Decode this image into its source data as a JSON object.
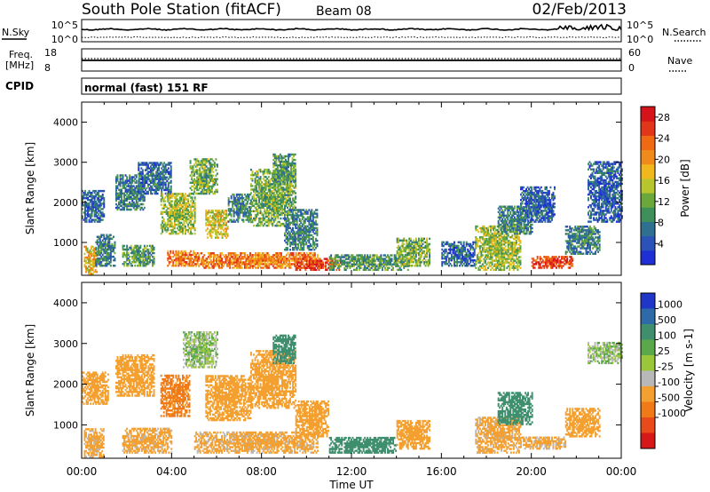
{
  "header": {
    "station": "South Pole Station (fitACF)",
    "beam": "Beam 08",
    "date": "02/Feb/2013"
  },
  "noise_panel": {
    "left_label": "N.Sky",
    "right_label": "N.Search",
    "left_ticks": [
      "10^5",
      "10^0"
    ],
    "right_ticks": [
      "10^5",
      "10^0"
    ]
  },
  "freq_panel": {
    "left_label_line1": "Freq.",
    "left_label_line2": "[MHz]",
    "left_ticks": [
      "18",
      "8"
    ],
    "right_label": "Nave",
    "right_ticks": [
      "60",
      "0"
    ]
  },
  "cpid_panel": {
    "label": "CPID",
    "mode_text": "normal (fast) 151 RF"
  },
  "colors": {
    "power_scale": [
      "#1f2fd6",
      "#2a52b8",
      "#2f6f8f",
      "#3f8f5a",
      "#6aa83c",
      "#b6c62c",
      "#f0b81c",
      "#f08a1a",
      "#f06a14",
      "#e2361a",
      "#d4141a"
    ],
    "velocity_scale": [
      "#1f36c8",
      "#2f6aa8",
      "#3f8f6f",
      "#5aa84a",
      "#9ac63a",
      "#b8b8b8",
      "#f4a030",
      "#f07a18",
      "#e84a1a",
      "#d61818"
    ]
  },
  "chart_data": [
    {
      "type": "heatmap",
      "title": "",
      "xlabel": "",
      "ylabel": "Slant Range [km]",
      "xlim": [
        "00:00",
        "00:00"
      ],
      "ylim": [
        180,
        4500
      ],
      "yticks": [
        "1000",
        "2000",
        "3000",
        "4000"
      ],
      "colorbar_label": "Power [dB]",
      "colorbar_ticks": [
        "4",
        "8",
        "12",
        "16",
        "20",
        "24",
        "28"
      ],
      "colorbar_range": [
        0,
        30
      ],
      "blobs": [
        {
          "t0": 0.0,
          "t1": 1.0,
          "r0": 1500,
          "r1": 2300,
          "v": 6
        },
        {
          "t0": 0.1,
          "t1": 0.7,
          "r0": 200,
          "r1": 900,
          "v": 18
        },
        {
          "t0": 0.6,
          "t1": 1.5,
          "r0": 400,
          "r1": 1200,
          "v": 8
        },
        {
          "t0": 1.5,
          "t1": 2.8,
          "r0": 1800,
          "r1": 2700,
          "v": 7
        },
        {
          "t0": 1.8,
          "t1": 3.2,
          "r0": 400,
          "r1": 900,
          "v": 10
        },
        {
          "t0": 2.5,
          "t1": 4.0,
          "r0": 2200,
          "r1": 3000,
          "v": 6
        },
        {
          "t0": 3.5,
          "t1": 5.0,
          "r0": 1200,
          "r1": 2200,
          "v": 14
        },
        {
          "t0": 3.8,
          "t1": 5.0,
          "r0": 400,
          "r1": 800,
          "v": 22
        },
        {
          "t0": 4.8,
          "t1": 6.0,
          "r0": 2200,
          "r1": 3100,
          "v": 12
        },
        {
          "t0": 5.0,
          "t1": 10.5,
          "r0": 350,
          "r1": 750,
          "v": 22
        },
        {
          "t0": 5.5,
          "t1": 6.5,
          "r0": 1100,
          "r1": 1800,
          "v": 16
        },
        {
          "t0": 6.5,
          "t1": 7.5,
          "r0": 1500,
          "r1": 2200,
          "v": 8
        },
        {
          "t0": 7.5,
          "t1": 9.5,
          "r0": 1400,
          "r1": 2800,
          "v": 12
        },
        {
          "t0": 8.5,
          "t1": 9.5,
          "r0": 2500,
          "r1": 3200,
          "v": 10
        },
        {
          "t0": 9.0,
          "t1": 10.5,
          "r0": 800,
          "r1": 1800,
          "v": 8
        },
        {
          "t0": 9.5,
          "t1": 11.5,
          "r0": 300,
          "r1": 600,
          "v": 26
        },
        {
          "t0": 11.0,
          "t1": 14.5,
          "r0": 300,
          "r1": 700,
          "v": 10
        },
        {
          "t0": 14.0,
          "t1": 15.5,
          "r0": 400,
          "r1": 1100,
          "v": 12
        },
        {
          "t0": 16.0,
          "t1": 17.5,
          "r0": 400,
          "r1": 1000,
          "v": 6
        },
        {
          "t0": 17.5,
          "t1": 19.5,
          "r0": 300,
          "r1": 1400,
          "v": 14
        },
        {
          "t0": 18.5,
          "t1": 20.0,
          "r0": 1200,
          "r1": 1900,
          "v": 8
        },
        {
          "t0": 20.0,
          "t1": 21.8,
          "r0": 350,
          "r1": 650,
          "v": 26
        },
        {
          "t0": 19.5,
          "t1": 21.0,
          "r0": 1500,
          "r1": 2400,
          "v": 5
        },
        {
          "t0": 21.5,
          "t1": 23.0,
          "r0": 700,
          "r1": 1400,
          "v": 8
        },
        {
          "t0": 22.5,
          "t1": 24.0,
          "r0": 1500,
          "r1": 3000,
          "v": 5
        }
      ]
    },
    {
      "type": "heatmap",
      "title": "",
      "xlabel": "Time UT",
      "ylabel": "Slant Range [km]",
      "xticks": [
        "00:00",
        "04:00",
        "08:00",
        "12:00",
        "16:00",
        "20:00",
        "00:00"
      ],
      "xlim": [
        "00:00",
        "00:00"
      ],
      "ylim": [
        180,
        4500
      ],
      "yticks": [
        "1000",
        "2000",
        "3000",
        "4000"
      ],
      "colorbar_label": "Velocity [m s-1]",
      "colorbar_ticks": [
        "1000",
        "500",
        "100",
        "25",
        "-25",
        "-100",
        "-500",
        "-1000"
      ],
      "blobs": [
        {
          "t0": 0.0,
          "t1": 1.2,
          "r0": 1500,
          "r1": 2300,
          "v": -300
        },
        {
          "t0": 0.1,
          "t1": 1.0,
          "r0": 200,
          "r1": 900,
          "v": -150
        },
        {
          "t0": 1.5,
          "t1": 3.2,
          "r0": 1700,
          "r1": 2700,
          "v": -300
        },
        {
          "t0": 1.8,
          "t1": 4.0,
          "r0": 300,
          "r1": 900,
          "v": -150
        },
        {
          "t0": 3.5,
          "t1": 4.8,
          "r0": 1200,
          "r1": 2200,
          "v": -700
        },
        {
          "t0": 4.5,
          "t1": 6.0,
          "r0": 2400,
          "r1": 3300,
          "v": 0
        },
        {
          "t0": 5.0,
          "t1": 10.5,
          "r0": 300,
          "r1": 800,
          "v": -150
        },
        {
          "t0": 5.5,
          "t1": 7.5,
          "r0": 1100,
          "r1": 2200,
          "v": -300
        },
        {
          "t0": 7.5,
          "t1": 9.5,
          "r0": 1400,
          "r1": 2800,
          "v": -300
        },
        {
          "t0": 8.5,
          "t1": 9.5,
          "r0": 2500,
          "r1": 3200,
          "v": 200
        },
        {
          "t0": 9.5,
          "t1": 11.0,
          "r0": 700,
          "r1": 1600,
          "v": -300
        },
        {
          "t0": 11.0,
          "t1": 14.0,
          "r0": 300,
          "r1": 700,
          "v": 200
        },
        {
          "t0": 14.0,
          "t1": 15.5,
          "r0": 400,
          "r1": 1100,
          "v": -300
        },
        {
          "t0": 17.5,
          "t1": 19.5,
          "r0": 300,
          "r1": 1200,
          "v": -150
        },
        {
          "t0": 18.5,
          "t1": 20.0,
          "r0": 1000,
          "r1": 1800,
          "v": 200
        },
        {
          "t0": 19.5,
          "t1": 21.5,
          "r0": 400,
          "r1": 700,
          "v": -150
        },
        {
          "t0": 21.5,
          "t1": 23.0,
          "r0": 700,
          "r1": 1400,
          "v": -300
        },
        {
          "t0": 22.5,
          "t1": 24.0,
          "r0": 2500,
          "r1": 3000,
          "v": 0
        }
      ]
    }
  ]
}
